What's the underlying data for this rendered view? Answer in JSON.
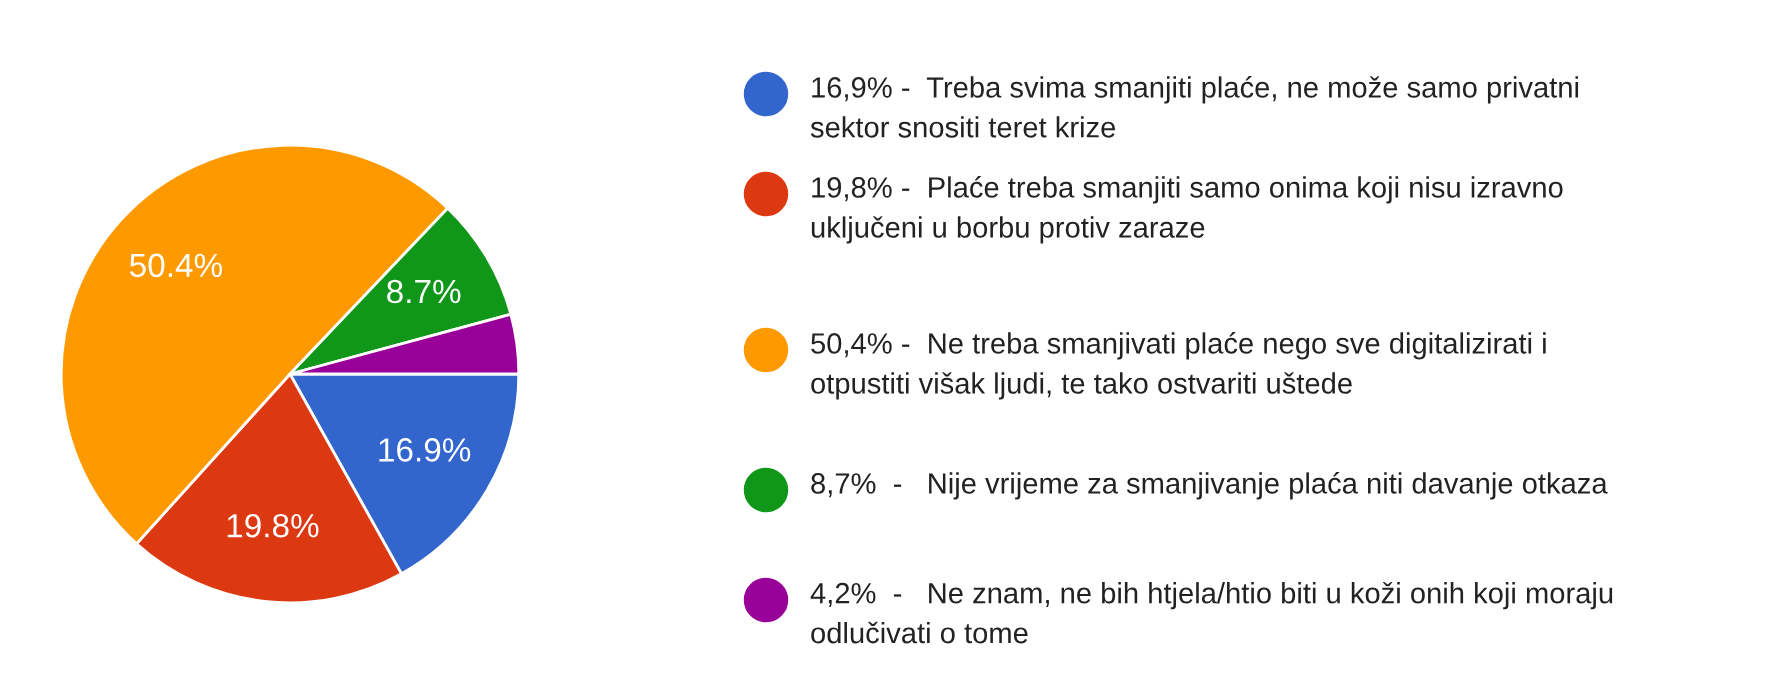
{
  "chart_data": {
    "type": "pie",
    "categories": [
      "16,9% -  Treba svima smanjiti plaće, ne može samo privatni\nsektor snositi teret krize",
      "19,8% -  Plaće treba smanjiti samo onima koji nisu izravno\nuključeni u borbu protiv zaraze",
      "50,4% -  Ne treba smanjivati plaće nego sve digitalizirati i\notpustiti višak ljudi, te tako ostvariti uštede",
      "8,7%  -   Nije vrijeme za smanjivanje plaća niti davanje otkaza",
      "4,2%  -   Ne znam, ne bih htjela/htio biti u koži onih koji moraju\nodlučivati o tome"
    ],
    "values": [
      16.9,
      19.8,
      50.4,
      8.7,
      4.2
    ],
    "colors": [
      "#3366cc",
      "#dc3912",
      "#ff9900",
      "#109618",
      "#990099"
    ],
    "value_labels": [
      "16.9%",
      "19.8%",
      "50.4%",
      "8.7%",
      null
    ],
    "legend": "right"
  }
}
